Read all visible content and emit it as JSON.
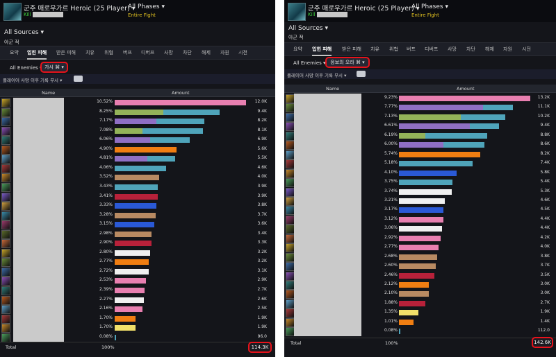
{
  "colors": {
    "highlight": "#e8121b",
    "kill": "#3dd13d",
    "phase_sub": "#e0c020"
  },
  "left": {
    "boss_title": "군주 매로우가르 Heroic (25 Player) ▾",
    "kill_label": "Kill",
    "phases_label": "All Phases ▾",
    "entire_fight": "Entire Fight",
    "sources_label": "All Sources ▾",
    "ally_label": "아군  적",
    "tabs": [
      "요약",
      "입힌 피해",
      "받은 피해",
      "치유",
      "위협",
      "버프",
      "디버프",
      "사망",
      "차단",
      "해제",
      "자원",
      "시전"
    ],
    "active_tab": 1,
    "enemies_label": "All Enemies ▾",
    "ability_chip": "가시 ⌘ ▾",
    "subfilter": "플레이어 사망 이후 기록 무시 ▾",
    "col_name": "Name",
    "col_amount": "Amount",
    "rows": [
      {
        "pct": "10.52%",
        "amt": "12.0K",
        "segs": [
          [
            1.0,
            "#e87fb0"
          ]
        ]
      },
      {
        "pct": "8.25%",
        "amt": "9.4K",
        "segs": [
          [
            0.37,
            "#93b359"
          ],
          [
            0.43,
            "#4fa4ba"
          ]
        ]
      },
      {
        "pct": "7.17%",
        "amt": "8.2K",
        "segs": [
          [
            0.32,
            "#8f6fc4"
          ],
          [
            0.36,
            "#4fa4ba"
          ]
        ]
      },
      {
        "pct": "7.08%",
        "amt": "8.1K",
        "segs": [
          [
            0.21,
            "#93b359"
          ],
          [
            0.46,
            "#4fa4ba"
          ]
        ]
      },
      {
        "pct": "6.06%",
        "amt": "6.9K",
        "segs": [
          [
            0.27,
            "#8f6fc4"
          ],
          [
            0.3,
            "#4fa4ba"
          ]
        ]
      },
      {
        "pct": "4.90%",
        "amt": "5.6K",
        "segs": [
          [
            0.47,
            "#f07e12"
          ]
        ]
      },
      {
        "pct": "4.81%",
        "amt": "5.5K",
        "segs": [
          [
            0.25,
            "#8f6fc4"
          ],
          [
            0.21,
            "#4fa4ba"
          ]
        ]
      },
      {
        "pct": "4.06%",
        "amt": "4.6K",
        "segs": [
          [
            0.39,
            "#4fa4ba"
          ]
        ]
      },
      {
        "pct": "3.52%",
        "amt": "4.0K",
        "segs": [
          [
            0.34,
            "#b88a62"
          ]
        ]
      },
      {
        "pct": "3.43%",
        "amt": "3.9K",
        "segs": [
          [
            0.33,
            "#4fa4ba"
          ]
        ]
      },
      {
        "pct": "3.41%",
        "amt": "3.9K",
        "segs": [
          [
            0.33,
            "#b8213a"
          ]
        ]
      },
      {
        "pct": "3.33%",
        "amt": "3.8K",
        "segs": [
          [
            0.32,
            "#2a59d6"
          ]
        ]
      },
      {
        "pct": "3.28%",
        "amt": "3.7K",
        "segs": [
          [
            0.31,
            "#b88a62"
          ]
        ]
      },
      {
        "pct": "3.15%",
        "amt": "3.6K",
        "segs": [
          [
            0.3,
            "#2a59d6"
          ]
        ]
      },
      {
        "pct": "2.98%",
        "amt": "3.4K",
        "segs": [
          [
            0.28,
            "#b88a62"
          ]
        ]
      },
      {
        "pct": "2.90%",
        "amt": "3.3K",
        "segs": [
          [
            0.28,
            "#b8213a"
          ]
        ]
      },
      {
        "pct": "2.80%",
        "amt": "3.2K",
        "segs": [
          [
            0.27,
            "#f0f0f0"
          ]
        ]
      },
      {
        "pct": "2.77%",
        "amt": "3.2K",
        "segs": [
          [
            0.26,
            "#f07e12"
          ]
        ]
      },
      {
        "pct": "2.72%",
        "amt": "3.1K",
        "segs": [
          [
            0.26,
            "#f0f0f0"
          ]
        ]
      },
      {
        "pct": "2.53%",
        "amt": "2.9K",
        "segs": [
          [
            0.24,
            "#e87fb0"
          ]
        ]
      },
      {
        "pct": "2.39%",
        "amt": "2.7K",
        "segs": [
          [
            0.23,
            "#e87fb0"
          ]
        ]
      },
      {
        "pct": "2.27%",
        "amt": "2.6K",
        "segs": [
          [
            0.22,
            "#f0f0f0"
          ]
        ]
      },
      {
        "pct": "2.16%",
        "amt": "2.5K",
        "segs": [
          [
            0.21,
            "#e87fb0"
          ]
        ]
      },
      {
        "pct": "1.70%",
        "amt": "1.9K",
        "segs": [
          [
            0.16,
            "#f07e12"
          ]
        ]
      },
      {
        "pct": "1.70%",
        "amt": "1.9K",
        "segs": [
          [
            0.16,
            "#f2e06a"
          ]
        ]
      },
      {
        "pct": "0.08%",
        "amt": "96.0",
        "segs": [
          [
            0.01,
            "#4fa4ba"
          ]
        ]
      }
    ],
    "total_label": "Total",
    "total_pct": "100%",
    "total_amount": "114.3K"
  },
  "right": {
    "boss_title": "군주 매로우가르 Heroic (25 Player) ▾",
    "kill_label": "Kill",
    "phases_label": "All Phases ▾",
    "entire_fight": "Entire Fight",
    "sources_label": "All Sources ▾",
    "ally_label": "아군  적",
    "tabs": [
      "요약",
      "입힌 피해",
      "받은 피해",
      "치유",
      "위협",
      "버프",
      "디버프",
      "사망",
      "차단",
      "해제",
      "자원",
      "시전"
    ],
    "active_tab": 1,
    "enemies_label": "All Enemies ▾",
    "ability_chip": "응보의 오라 ⌘ ▾",
    "subfilter": "플레이어 사망 이후 기록 무시 ▾",
    "col_name": "Name",
    "col_amount": "Amount",
    "rows": [
      {
        "pct": "9.23%",
        "amt": "13.2K",
        "segs": [
          [
            1.0,
            "#e87fb0"
          ]
        ]
      },
      {
        "pct": "7.77%",
        "amt": "11.1K",
        "segs": [
          [
            0.64,
            "#8f6fc4"
          ],
          [
            0.23,
            "#4fa4ba"
          ]
        ]
      },
      {
        "pct": "7.13%",
        "amt": "10.2K",
        "segs": [
          [
            0.47,
            "#93b359"
          ],
          [
            0.34,
            "#4fa4ba"
          ]
        ]
      },
      {
        "pct": "6.61%",
        "amt": "9.4K",
        "segs": [
          [
            0.54,
            "#8f6fc4"
          ],
          [
            0.22,
            "#4fa4ba"
          ]
        ]
      },
      {
        "pct": "6.19%",
        "amt": "8.8K",
        "segs": [
          [
            0.2,
            "#93b359"
          ],
          [
            0.47,
            "#4fa4ba"
          ]
        ]
      },
      {
        "pct": "6.00%",
        "amt": "8.6K",
        "segs": [
          [
            0.34,
            "#8f6fc4"
          ],
          [
            0.31,
            "#4fa4ba"
          ]
        ]
      },
      {
        "pct": "5.74%",
        "amt": "8.2K",
        "segs": [
          [
            0.62,
            "#f07e12"
          ]
        ]
      },
      {
        "pct": "5.18%",
        "amt": "7.4K",
        "segs": [
          [
            0.56,
            "#4fa4ba"
          ]
        ]
      },
      {
        "pct": "4.10%",
        "amt": "5.8K",
        "segs": [
          [
            0.44,
            "#2a59d6"
          ]
        ]
      },
      {
        "pct": "3.75%",
        "amt": "5.4K",
        "segs": [
          [
            0.41,
            "#4fa4ba"
          ]
        ]
      },
      {
        "pct": "3.74%",
        "amt": "5.3K",
        "segs": [
          [
            0.4,
            "#f0f0f0"
          ]
        ]
      },
      {
        "pct": "3.21%",
        "amt": "4.6K",
        "segs": [
          [
            0.35,
            "#f0f0f0"
          ]
        ]
      },
      {
        "pct": "3.17%",
        "amt": "4.5K",
        "segs": [
          [
            0.34,
            "#2a59d6"
          ]
        ]
      },
      {
        "pct": "3.12%",
        "amt": "4.4K",
        "segs": [
          [
            0.34,
            "#e87fb0"
          ]
        ]
      },
      {
        "pct": "3.06%",
        "amt": "4.4K",
        "segs": [
          [
            0.33,
            "#f0f0f0"
          ]
        ]
      },
      {
        "pct": "2.92%",
        "amt": "4.2K",
        "segs": [
          [
            0.32,
            "#e87fb0"
          ]
        ]
      },
      {
        "pct": "2.77%",
        "amt": "4.0K",
        "segs": [
          [
            0.3,
            "#e87fb0"
          ]
        ]
      },
      {
        "pct": "2.68%",
        "amt": "3.8K",
        "segs": [
          [
            0.29,
            "#b88a62"
          ]
        ]
      },
      {
        "pct": "2.60%",
        "amt": "3.7K",
        "segs": [
          [
            0.28,
            "#b88a62"
          ]
        ]
      },
      {
        "pct": "2.46%",
        "amt": "3.5K",
        "segs": [
          [
            0.27,
            "#b8213a"
          ]
        ]
      },
      {
        "pct": "2.12%",
        "amt": "3.0K",
        "segs": [
          [
            0.23,
            "#f07e12"
          ]
        ]
      },
      {
        "pct": "2.10%",
        "amt": "3.0K",
        "segs": [
          [
            0.23,
            "#b88a62"
          ]
        ]
      },
      {
        "pct": "1.88%",
        "amt": "2.7K",
        "segs": [
          [
            0.2,
            "#b8213a"
          ]
        ]
      },
      {
        "pct": "1.35%",
        "amt": "1.9K",
        "segs": [
          [
            0.15,
            "#f2e06a"
          ]
        ]
      },
      {
        "pct": "1.01%",
        "amt": "1.4K",
        "segs": [
          [
            0.11,
            "#f07e12"
          ]
        ]
      },
      {
        "pct": "0.08%",
        "amt": "112.0",
        "segs": [
          [
            0.01,
            "#4fa4ba"
          ]
        ]
      }
    ],
    "total_label": "Total",
    "total_pct": "100%",
    "total_amount": "142.6K"
  }
}
